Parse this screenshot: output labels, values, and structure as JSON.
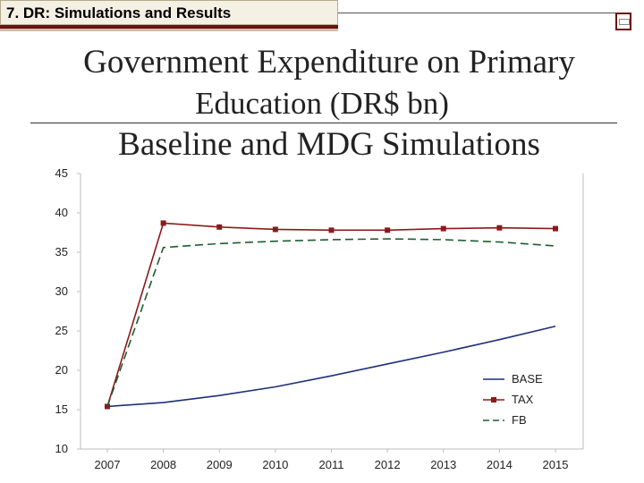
{
  "header": {
    "section_title": "7. DR: Simulations and Results"
  },
  "slide": {
    "title_line1": "Government Expenditure on Primary",
    "title_line2": "Education (DR$ bn)",
    "title_line3": "Baseline and MDG Simulations"
  },
  "colors": {
    "accent": "#6b1014",
    "base": "#1f2f7a",
    "tax": "#8b1a1a",
    "fb": "#1d5e2e"
  },
  "chart_data": {
    "type": "line",
    "x": [
      "2007",
      "2008",
      "2009",
      "2010",
      "2011",
      "2012",
      "2013",
      "2014",
      "2015"
    ],
    "series": [
      {
        "name": "BASE",
        "style": "solid",
        "values": [
          15.4,
          15.9,
          16.8,
          17.9,
          19.3,
          20.8,
          22.3,
          23.9,
          25.6
        ]
      },
      {
        "name": "TAX",
        "style": "solid-square-markers",
        "values": [
          15.4,
          38.7,
          38.2,
          37.9,
          37.8,
          37.8,
          38.0,
          38.1,
          38.0
        ]
      },
      {
        "name": "FB",
        "style": "dashed",
        "values": [
          15.4,
          35.6,
          36.1,
          36.4,
          36.6,
          36.7,
          36.6,
          36.3,
          35.8
        ]
      }
    ],
    "yticks": [
      10,
      15,
      20,
      25,
      30,
      35,
      40,
      45
    ],
    "ylim": [
      10,
      45
    ],
    "grid": false,
    "legend_position": "bottom-right"
  }
}
